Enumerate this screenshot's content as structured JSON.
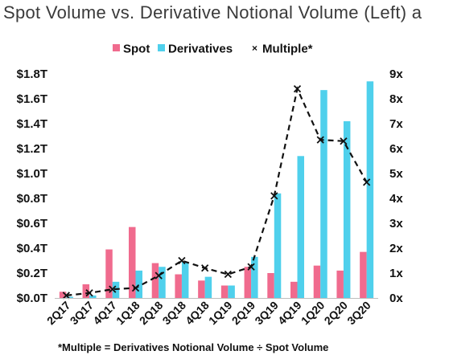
{
  "title": "Spot Volume vs. Derivative Notional Volume (Left) a",
  "footnote": "*Multiple = Derivatives Notional Volume ÷ Spot Volume",
  "legend": [
    {
      "label": "Spot",
      "marker": "square",
      "color": "#f06b8e"
    },
    {
      "label": "Derivatives",
      "marker": "square",
      "color": "#4fd0ec"
    },
    {
      "label": "Multiple*",
      "marker": "x",
      "color": "#111111"
    }
  ],
  "chart_data": {
    "type": "bar",
    "categories": [
      "2Q17",
      "3Q17",
      "4Q17",
      "1Q18",
      "2Q18",
      "3Q18",
      "4Q18",
      "1Q19",
      "2Q19",
      "3Q19",
      "4Q19",
      "1Q20",
      "2Q20",
      "3Q20"
    ],
    "series": [
      {
        "name": "Spot",
        "type": "bar",
        "axis": "left",
        "color": "#f06b8e",
        "values": [
          0.05,
          0.11,
          0.39,
          0.57,
          0.28,
          0.19,
          0.14,
          0.1,
          0.25,
          0.2,
          0.13,
          0.26,
          0.22,
          0.37
        ]
      },
      {
        "name": "Derivatives",
        "type": "bar",
        "axis": "left",
        "color": "#4fd0ec",
        "values": [
          0.01,
          0.02,
          0.13,
          0.22,
          0.25,
          0.29,
          0.17,
          0.1,
          0.33,
          0.84,
          1.14,
          1.67,
          1.42,
          1.74
        ]
      },
      {
        "name": "Multiple*",
        "type": "line",
        "axis": "right",
        "color": "#111111",
        "dashed": true,
        "values": [
          0.1,
          0.2,
          0.35,
          0.4,
          0.9,
          1.5,
          1.2,
          0.95,
          1.25,
          4.1,
          8.4,
          6.35,
          6.3,
          4.65
        ]
      }
    ],
    "y_left": {
      "ticks": [
        "$0.0T",
        "$0.2T",
        "$0.4T",
        "$0.6T",
        "$0.8T",
        "$1.0T",
        "$1.2T",
        "$1.4T",
        "$1.6T",
        "$1.8T"
      ],
      "range": [
        0,
        1.8
      ]
    },
    "y_right": {
      "ticks": [
        "0x",
        "1x",
        "2x",
        "3x",
        "4x",
        "5x",
        "6x",
        "7x",
        "8x",
        "9x"
      ],
      "range": [
        0,
        9
      ]
    },
    "grid": false,
    "legend_position": "top"
  }
}
